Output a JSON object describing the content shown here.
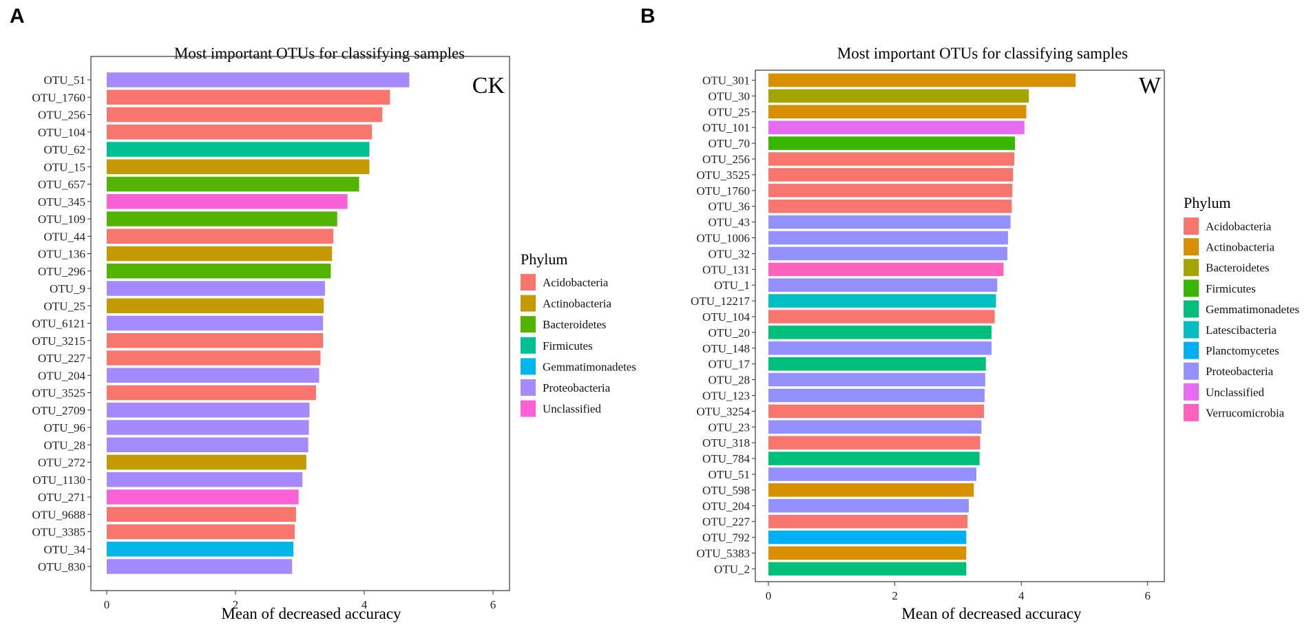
{
  "chart_data": [
    {
      "type": "bar",
      "orientation": "horizontal",
      "panel": "A",
      "title": "Most important OTUs for classifying samples",
      "tag": "CK",
      "xlabel": "Mean of decreased accuracy",
      "xlim": [
        0,
        6
      ],
      "xticks": [
        0,
        2,
        4,
        6
      ],
      "legend_title": "Phylum",
      "legend": [
        {
          "name": "Acidobacteria",
          "color": "#F8766D"
        },
        {
          "name": "Actinobacteria",
          "color": "#C49A00"
        },
        {
          "name": "Bacteroidetes",
          "color": "#53B400"
        },
        {
          "name": "Firmicutes",
          "color": "#00C094"
        },
        {
          "name": "Gemmatimonadetes",
          "color": "#00B6EB"
        },
        {
          "name": "Proteobacteria",
          "color": "#A58AFF"
        },
        {
          "name": "Unclassified",
          "color": "#FB61D7"
        }
      ],
      "bars": [
        {
          "label": "OTU_51",
          "value": 4.7,
          "phylum": "Proteobacteria"
        },
        {
          "label": "OTU_1760",
          "value": 4.4,
          "phylum": "Acidobacteria"
        },
        {
          "label": "OTU_256",
          "value": 4.28,
          "phylum": "Acidobacteria"
        },
        {
          "label": "OTU_104",
          "value": 4.12,
          "phylum": "Acidobacteria"
        },
        {
          "label": "OTU_62",
          "value": 4.08,
          "phylum": "Firmicutes"
        },
        {
          "label": "OTU_15",
          "value": 4.08,
          "phylum": "Actinobacteria"
        },
        {
          "label": "OTU_657",
          "value": 3.92,
          "phylum": "Bacteroidetes"
        },
        {
          "label": "OTU_345",
          "value": 3.74,
          "phylum": "Unclassified"
        },
        {
          "label": "OTU_109",
          "value": 3.58,
          "phylum": "Bacteroidetes"
        },
        {
          "label": "OTU_44",
          "value": 3.52,
          "phylum": "Acidobacteria"
        },
        {
          "label": "OTU_136",
          "value": 3.5,
          "phylum": "Actinobacteria"
        },
        {
          "label": "OTU_296",
          "value": 3.48,
          "phylum": "Bacteroidetes"
        },
        {
          "label": "OTU_9",
          "value": 3.39,
          "phylum": "Proteobacteria"
        },
        {
          "label": "OTU_25",
          "value": 3.37,
          "phylum": "Actinobacteria"
        },
        {
          "label": "OTU_6121",
          "value": 3.36,
          "phylum": "Proteobacteria"
        },
        {
          "label": "OTU_3215",
          "value": 3.36,
          "phylum": "Acidobacteria"
        },
        {
          "label": "OTU_227",
          "value": 3.32,
          "phylum": "Acidobacteria"
        },
        {
          "label": "OTU_204",
          "value": 3.3,
          "phylum": "Proteobacteria"
        },
        {
          "label": "OTU_3525",
          "value": 3.25,
          "phylum": "Acidobacteria"
        },
        {
          "label": "OTU_2709",
          "value": 3.15,
          "phylum": "Proteobacteria"
        },
        {
          "label": "OTU_96",
          "value": 3.14,
          "phylum": "Proteobacteria"
        },
        {
          "label": "OTU_28",
          "value": 3.13,
          "phylum": "Proteobacteria"
        },
        {
          "label": "OTU_272",
          "value": 3.1,
          "phylum": "Actinobacteria"
        },
        {
          "label": "OTU_1130",
          "value": 3.04,
          "phylum": "Proteobacteria"
        },
        {
          "label": "OTU_271",
          "value": 2.98,
          "phylum": "Unclassified"
        },
        {
          "label": "OTU_9688",
          "value": 2.94,
          "phylum": "Acidobacteria"
        },
        {
          "label": "OTU_3385",
          "value": 2.92,
          "phylum": "Acidobacteria"
        },
        {
          "label": "OTU_34",
          "value": 2.9,
          "phylum": "Gemmatimonadetes"
        },
        {
          "label": "OTU_830",
          "value": 2.88,
          "phylum": "Proteobacteria"
        }
      ]
    },
    {
      "type": "bar",
      "orientation": "horizontal",
      "panel": "B",
      "title": "Most important OTUs for classifying samples",
      "tag": "W",
      "xlabel": "Mean of decreased accuracy",
      "xlim": [
        0,
        6
      ],
      "xticks": [
        0,
        2,
        4,
        6
      ],
      "legend_title": "Phylum",
      "legend": [
        {
          "name": "Acidobacteria",
          "color": "#F8766D"
        },
        {
          "name": "Actinobacteria",
          "color": "#D89000"
        },
        {
          "name": "Bacteroidetes",
          "color": "#A3A500"
        },
        {
          "name": "Firmicutes",
          "color": "#39B600"
        },
        {
          "name": "Gemmatimonadetes",
          "color": "#00BF7D"
        },
        {
          "name": "Latescibacteria",
          "color": "#00BFC4"
        },
        {
          "name": "Planctomycetes",
          "color": "#00B0F6"
        },
        {
          "name": "Proteobacteria",
          "color": "#9590FF"
        },
        {
          "name": "Unclassified",
          "color": "#E76BF3"
        },
        {
          "name": "Verrucomicrobia",
          "color": "#FF62BC"
        }
      ],
      "bars": [
        {
          "label": "OTU_301",
          "value": 4.86,
          "phylum": "Actinobacteria"
        },
        {
          "label": "OTU_30",
          "value": 4.12,
          "phylum": "Bacteroidetes"
        },
        {
          "label": "OTU_25",
          "value": 4.08,
          "phylum": "Actinobacteria"
        },
        {
          "label": "OTU_101",
          "value": 4.05,
          "phylum": "Unclassified"
        },
        {
          "label": "OTU_70",
          "value": 3.9,
          "phylum": "Firmicutes"
        },
        {
          "label": "OTU_256",
          "value": 3.89,
          "phylum": "Acidobacteria"
        },
        {
          "label": "OTU_3525",
          "value": 3.87,
          "phylum": "Acidobacteria"
        },
        {
          "label": "OTU_1760",
          "value": 3.86,
          "phylum": "Acidobacteria"
        },
        {
          "label": "OTU_36",
          "value": 3.85,
          "phylum": "Acidobacteria"
        },
        {
          "label": "OTU_43",
          "value": 3.83,
          "phylum": "Proteobacteria"
        },
        {
          "label": "OTU_1006",
          "value": 3.79,
          "phylum": "Proteobacteria"
        },
        {
          "label": "OTU_32",
          "value": 3.78,
          "phylum": "Proteobacteria"
        },
        {
          "label": "OTU_131",
          "value": 3.72,
          "phylum": "Verrucomicrobia"
        },
        {
          "label": "OTU_1",
          "value": 3.62,
          "phylum": "Proteobacteria"
        },
        {
          "label": "OTU_12217",
          "value": 3.6,
          "phylum": "Latescibacteria"
        },
        {
          "label": "OTU_104",
          "value": 3.58,
          "phylum": "Acidobacteria"
        },
        {
          "label": "OTU_20",
          "value": 3.53,
          "phylum": "Gemmatimonadetes"
        },
        {
          "label": "OTU_148",
          "value": 3.53,
          "phylum": "Proteobacteria"
        },
        {
          "label": "OTU_17",
          "value": 3.44,
          "phylum": "Gemmatimonadetes"
        },
        {
          "label": "OTU_28",
          "value": 3.43,
          "phylum": "Proteobacteria"
        },
        {
          "label": "OTU_123",
          "value": 3.42,
          "phylum": "Proteobacteria"
        },
        {
          "label": "OTU_3254",
          "value": 3.41,
          "phylum": "Acidobacteria"
        },
        {
          "label": "OTU_23",
          "value": 3.37,
          "phylum": "Proteobacteria"
        },
        {
          "label": "OTU_318",
          "value": 3.35,
          "phylum": "Acidobacteria"
        },
        {
          "label": "OTU_784",
          "value": 3.34,
          "phylum": "Gemmatimonadetes"
        },
        {
          "label": "OTU_51",
          "value": 3.29,
          "phylum": "Proteobacteria"
        },
        {
          "label": "OTU_598",
          "value": 3.25,
          "phylum": "Actinobacteria"
        },
        {
          "label": "OTU_204",
          "value": 3.17,
          "phylum": "Proteobacteria"
        },
        {
          "label": "OTU_227",
          "value": 3.15,
          "phylum": "Acidobacteria"
        },
        {
          "label": "OTU_792",
          "value": 3.13,
          "phylum": "Planctomycetes"
        },
        {
          "label": "OTU_5383",
          "value": 3.13,
          "phylum": "Actinobacteria"
        },
        {
          "label": "OTU_2",
          "value": 3.13,
          "phylum": "Gemmatimonadetes"
        }
      ]
    }
  ]
}
